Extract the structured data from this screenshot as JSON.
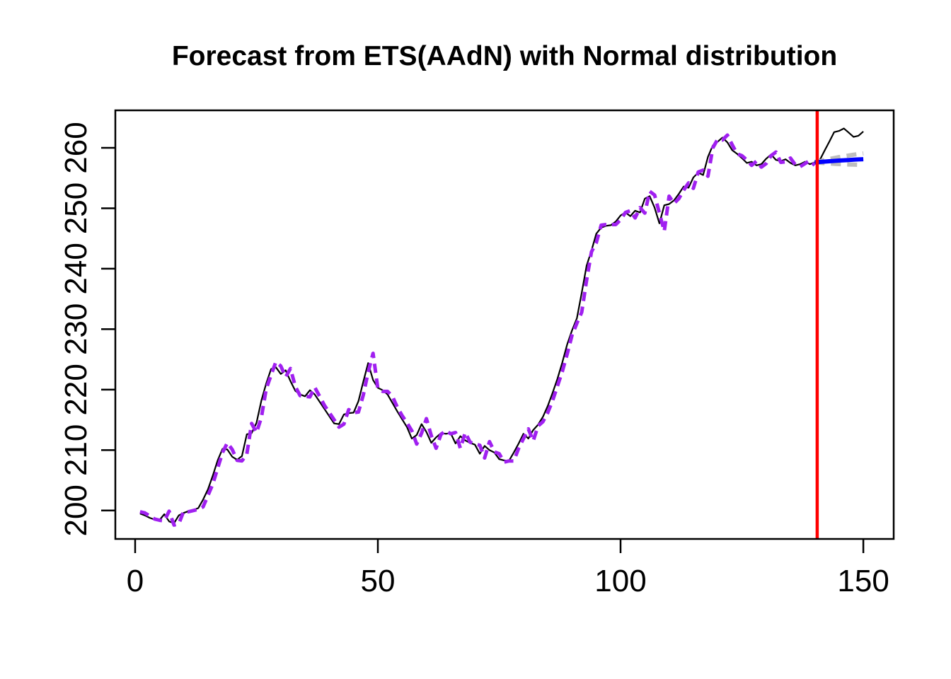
{
  "chart_data": {
    "type": "line",
    "title": "Forecast from ETS(AAdN) with Normal distribution",
    "xlabel": "",
    "ylabel": "",
    "grid": "off",
    "legend": "none",
    "x_ticks": [
      0,
      50,
      100,
      150
    ],
    "y_ticks": [
      200,
      210,
      220,
      230,
      240,
      250,
      260
    ],
    "x_axis_range": [
      -4.08,
      156.26
    ],
    "y_axis_range": [
      195.3,
      266.2
    ],
    "forecast_origin": 140.5,
    "colors": {
      "actuals": "#000000",
      "fitted": "#A020F0",
      "forecast": "#0000FF",
      "interval": "#BEBEBE",
      "origin_line": "#FF0000",
      "box": "#000000"
    },
    "series": [
      {
        "name": "actuals",
        "style": "solid",
        "color": "#000000",
        "x_start": 1,
        "values": [
          199.5,
          199.2,
          198.8,
          198.5,
          198.4,
          199.4,
          198.2,
          197.9,
          199.2,
          199.6,
          199.9,
          200.1,
          200.4,
          201.8,
          203.5,
          205.8,
          208.3,
          210.2,
          210.1,
          208.9,
          208.4,
          209.0,
          212.6,
          212.8,
          214.5,
          218.2,
          221.0,
          223.4,
          223.7,
          222.6,
          223.2,
          221.4,
          219.8,
          219.2,
          218.9,
          219.9,
          219.2,
          218.0,
          216.8,
          215.6,
          214.4,
          214.3,
          215.9,
          216.1,
          216.2,
          218.1,
          221.3,
          224.4,
          221.6,
          220.3,
          219.9,
          219.2,
          217.8,
          216.4,
          215.1,
          213.8,
          211.9,
          212.5,
          214.3,
          213.0,
          211.2,
          212.1,
          212.8,
          212.7,
          212.8,
          211.1,
          212.3,
          211.6,
          211.2,
          210.9,
          209.4,
          210.7,
          210.0,
          209.6,
          208.5,
          208.3,
          208.2,
          209.6,
          211.1,
          212.7,
          211.9,
          213.3,
          214.2,
          215.5,
          217.3,
          219.5,
          221.8,
          224.5,
          227.5,
          229.8,
          231.8,
          236.0,
          240.5,
          243.0,
          245.8,
          246.8,
          247.1,
          247.2,
          247.8,
          248.8,
          249.3,
          248.7,
          249.6,
          249.3,
          251.6,
          252.0,
          250.1,
          247.5,
          250.5,
          250.7,
          251.3,
          252.4,
          253.6,
          253.4,
          255.1,
          255.9,
          255.5,
          258.5,
          260.4,
          261.0,
          261.7,
          260.9,
          259.6,
          259.0,
          258.3,
          257.5,
          257.7,
          257.1,
          257.3,
          258.2,
          258.9,
          258.0,
          257.8,
          258.1,
          257.5,
          257.1,
          257.3,
          257.7,
          257.3,
          257.6,
          257.9,
          259.5,
          261.0,
          262.6,
          262.8,
          263.2,
          262.5,
          261.8,
          262.0,
          262.7
        ]
      },
      {
        "name": "fitted",
        "style": "dashed",
        "color": "#A020F0",
        "x_start": 1,
        "values": [
          199.8,
          199.6,
          199.1,
          198.6,
          198.4,
          198.3,
          199.9,
          197.6,
          197.8,
          199.9,
          199.8,
          200.0,
          200.2,
          200.6,
          202.5,
          204.4,
          207.0,
          209.6,
          211.2,
          210.1,
          208.3,
          208.2,
          209.3,
          214.4,
          212.9,
          215.4,
          220.1,
          222.4,
          224.6,
          223.9,
          222.1,
          223.5,
          220.5,
          219.0,
          218.9,
          218.8,
          220.4,
          218.9,
          217.4,
          216.2,
          215.0,
          213.8,
          214.3,
          216.7,
          216.2,
          216.3,
          219.1,
          222.9,
          226.0,
          220.2,
          219.7,
          219.7,
          218.9,
          217.1,
          215.7,
          214.5,
          213.2,
          211.0,
          212.8,
          215.2,
          212.4,
          210.3,
          212.6,
          213.2,
          212.7,
          212.9,
          210.3,
          212.9,
          211.3,
          211.0,
          210.8,
          208.7,
          211.4,
          209.7,
          209.4,
          208.0,
          208.2,
          208.2,
          210.3,
          211.9,
          213.5,
          211.5,
          214.0,
          214.7,
          216.2,
          218.2,
          220.6,
          223.0,
          225.9,
          229.0,
          231.0,
          232.8,
          238.1,
          242.8,
          244.3,
          247.2,
          247.3,
          247.3,
          247.3,
          248.1,
          249.3,
          249.6,
          248.4,
          250.1,
          249.2,
          252.8,
          252.2,
          249.2,
          246.2,
          252.0,
          250.8,
          251.6,
          253.0,
          254.2,
          253.3,
          256.0,
          256.3,
          255.3,
          260.0,
          261.4,
          261.3,
          262.1,
          260.5,
          259.0,
          258.7,
          258.0,
          257.1,
          257.8,
          256.8,
          257.4,
          258.7,
          259.3,
          257.6,
          257.7,
          258.3,
          257.2,
          256.9,
          257.4,
          257.9,
          257.1
        ]
      },
      {
        "name": "interval-upper",
        "style": "dashed",
        "color": "#BEBEBE",
        "x_start": 140,
        "values": [
          257.6,
          257.78,
          257.97,
          258.15,
          258.32,
          258.47,
          258.61,
          258.74,
          258.86,
          258.97,
          259.07
        ]
      },
      {
        "name": "interval-lower",
        "style": "dashed",
        "color": "#BEBEBE",
        "x_start": 140,
        "values": [
          257.6,
          257.54,
          257.47,
          257.41,
          257.36,
          257.31,
          257.27,
          257.24,
          257.22,
          257.19,
          257.17
        ]
      },
      {
        "name": "point-forecast",
        "style": "solid",
        "color": "#0000FF",
        "x_start": 140,
        "values": [
          257.6,
          257.66,
          257.72,
          257.78,
          257.84,
          257.89,
          257.94,
          257.99,
          258.04,
          258.08,
          258.12
        ]
      }
    ]
  }
}
